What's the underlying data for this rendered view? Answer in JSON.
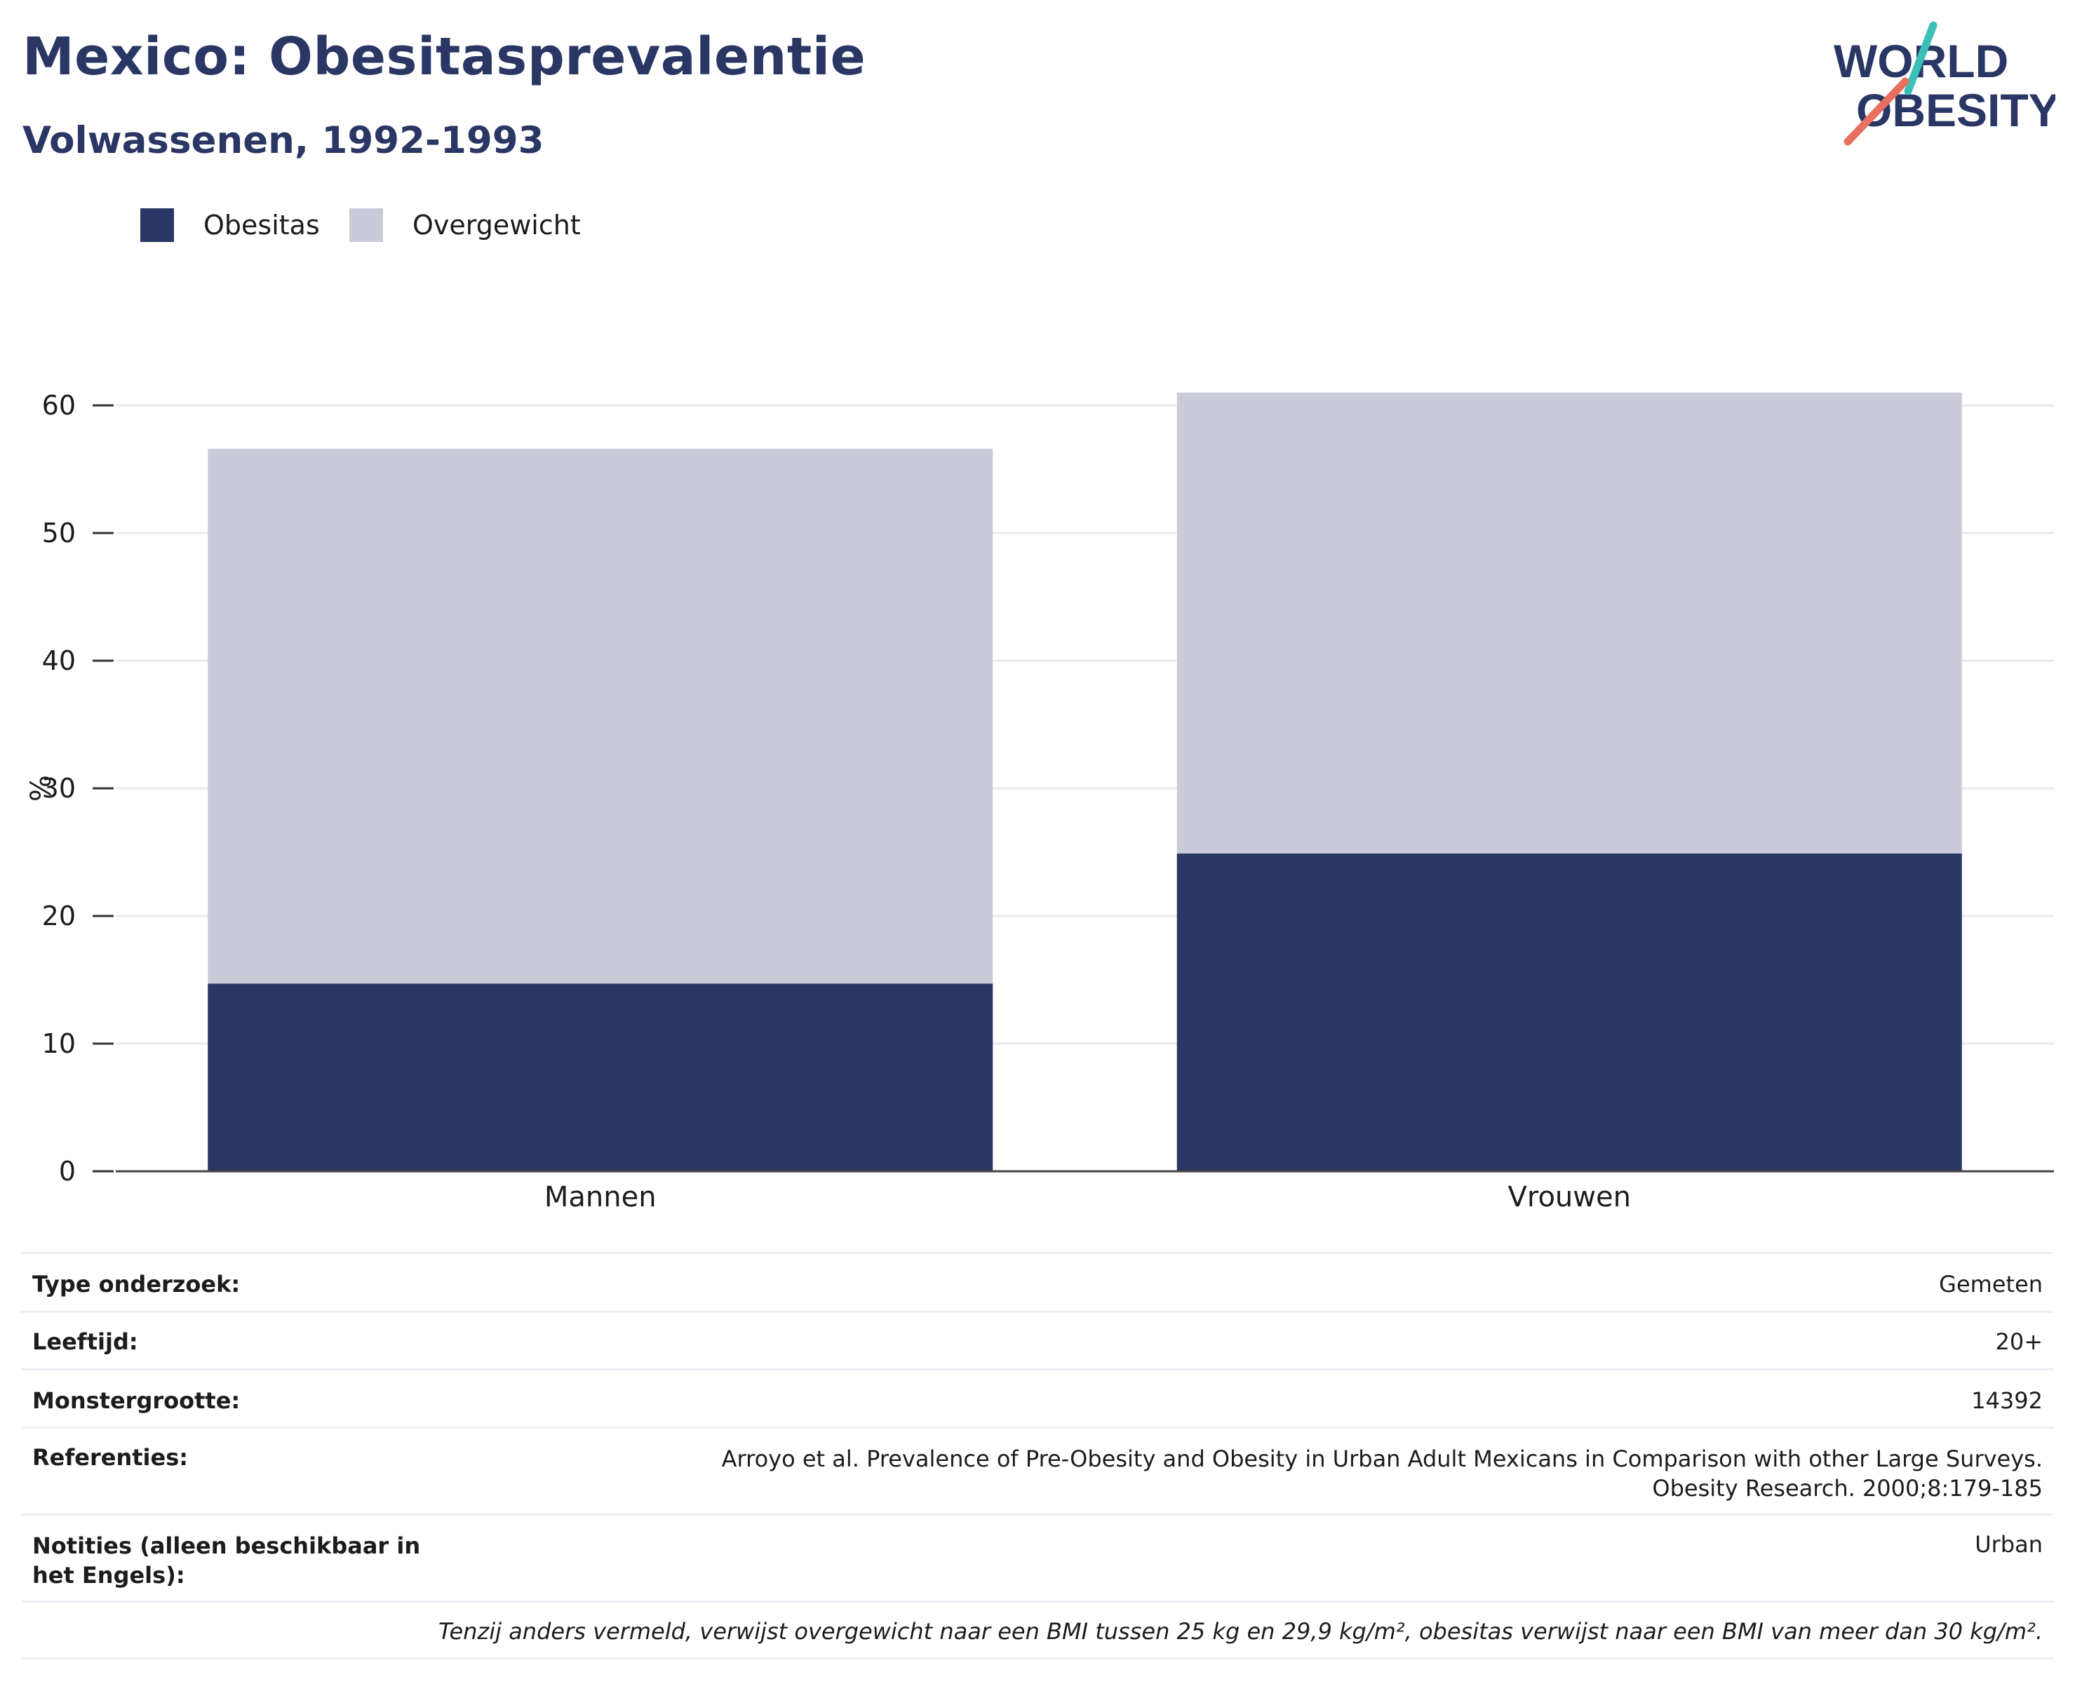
{
  "header": {
    "title": "Mexico: Obesitasprevalentie",
    "subtitle": "Volwassenen, 1992-1993"
  },
  "logo": {
    "line1": "WORLD",
    "line2": "OBESITY"
  },
  "legend": [
    {
      "label": "Obesitas",
      "color": "#2a3664"
    },
    {
      "label": "Overgewicht",
      "color": "#c9ccd8"
    }
  ],
  "chart_data": {
    "type": "bar",
    "stacked": true,
    "categories": [
      "Mannen",
      "Vrouwen"
    ],
    "series": [
      {
        "name": "Obesitas",
        "color": "#2a3664",
        "values": [
          14.7,
          24.9
        ]
      },
      {
        "name": "Overgewicht",
        "color": "#c9ccd8",
        "values": [
          41.9,
          36.1
        ]
      }
    ],
    "title": "Mexico: Obesitasprevalentie",
    "subtitle": "Volwassenen, 1992-1993",
    "xlabel": "",
    "ylabel": "%",
    "ylim": [
      0,
      60
    ],
    "yticks": [
      0,
      10,
      20,
      30,
      40,
      50,
      60
    ],
    "grid": true,
    "legend_position": "top-left"
  },
  "info": [
    {
      "key": "Type onderzoek:",
      "value": "Gemeten"
    },
    {
      "key": "Leeftijd:",
      "value": "20+"
    },
    {
      "key": "Monstergrootte:",
      "value": "14392"
    },
    {
      "key": "Referenties:",
      "value": "Arroyo et al. Prevalence of Pre-Obesity and Obesity in Urban Adult Mexicans in Comparison with other Large Surveys. Obesity Research. 2000;8:179-185"
    },
    {
      "key": "Notities (alleen beschikbaar in het Engels):",
      "value": "Urban"
    }
  ],
  "footnote": "Tenzij anders vermeld, verwijst overgewicht naar een BMI tussen 25 kg en 29,9 kg/m², obesitas verwijst naar een BMI van meer dan 30 kg/m²."
}
